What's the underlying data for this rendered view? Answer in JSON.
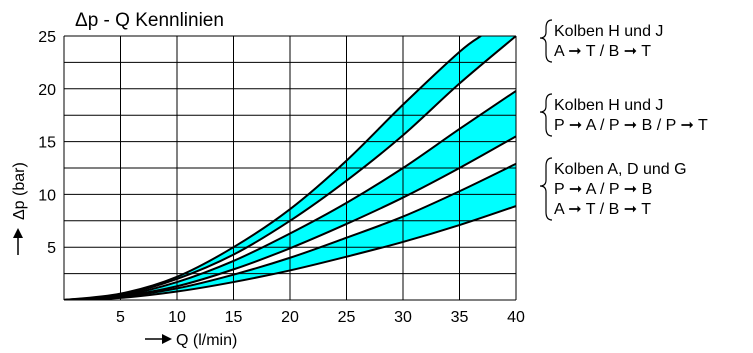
{
  "chart_data": {
    "type": "area",
    "title": "Δp - Q Kennlinien",
    "xlabel": "Q (l/min)",
    "ylabel": "Δp (bar)",
    "xlim": [
      0,
      40
    ],
    "ylim": [
      0,
      25
    ],
    "x_ticks": [
      "5",
      "10",
      "15",
      "20",
      "25",
      "30",
      "35",
      "40"
    ],
    "y_ticks": [
      "5",
      "10",
      "15",
      "20",
      "25"
    ],
    "grid": true,
    "band_color": "#00ffff",
    "curves": [
      {
        "id": "c1",
        "x": [
          0,
          5,
          10,
          15,
          20,
          25,
          30,
          35,
          36.9
        ],
        "y": [
          0,
          0.6,
          2.2,
          5.0,
          8.6,
          13.2,
          18.5,
          23.5,
          25
        ]
      },
      {
        "id": "c2",
        "x": [
          0,
          5,
          10,
          15,
          20,
          25,
          30,
          35,
          40
        ],
        "y": [
          0,
          0.5,
          2.0,
          4.3,
          7.5,
          11.3,
          15.6,
          20.5,
          25
        ]
      },
      {
        "id": "c3",
        "x": [
          0,
          5,
          10,
          15,
          20,
          25,
          30,
          35,
          40
        ],
        "y": [
          0,
          0.4,
          1.7,
          3.7,
          6.3,
          9.2,
          12.5,
          16.2,
          19.8
        ]
      },
      {
        "id": "c4",
        "x": [
          0,
          5,
          10,
          15,
          20,
          25,
          30,
          35,
          40
        ],
        "y": [
          0,
          0.35,
          1.3,
          2.9,
          4.9,
          7.2,
          9.7,
          12.5,
          15.5
        ]
      },
      {
        "id": "c5",
        "x": [
          0,
          5,
          10,
          15,
          20,
          25,
          30,
          35,
          40
        ],
        "y": [
          0,
          0.3,
          1.1,
          2.4,
          4.0,
          5.9,
          7.9,
          10.3,
          12.9
        ]
      },
      {
        "id": "c6",
        "x": [
          0,
          5,
          10,
          15,
          20,
          25,
          30,
          35,
          40
        ],
        "y": [
          0,
          0.2,
          0.8,
          1.7,
          2.8,
          4.1,
          5.5,
          7.1,
          8.9
        ]
      }
    ],
    "bands": [
      {
        "upper": "c1",
        "lower": "c2"
      },
      {
        "upper": "c3",
        "lower": "c4"
      },
      {
        "upper": "c5",
        "lower": "c6"
      }
    ],
    "annotations": [
      {
        "lines": [
          "Kolben H und J",
          "A ➞ T / B ➞ T"
        ]
      },
      {
        "lines": [
          "Kolben H und J",
          "P ➞ A / P ➞ B / P ➞ T"
        ]
      },
      {
        "lines": [
          "Kolben A, D und G",
          "P ➞ A / P ➞ B",
          "A ➞ T / B ➞ T"
        ]
      }
    ]
  }
}
